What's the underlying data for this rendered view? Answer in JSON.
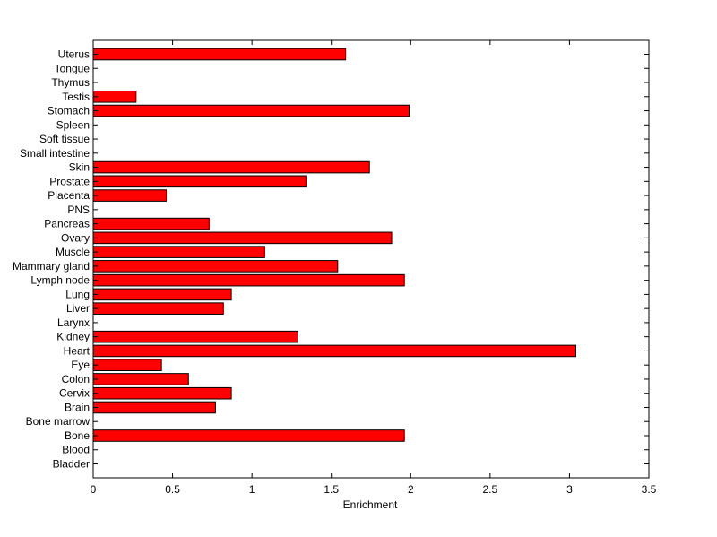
{
  "chart_data": {
    "type": "bar",
    "orientation": "horizontal",
    "title": "",
    "xlabel": "Enrichment",
    "ylabel": "",
    "xlim": [
      0,
      3.5
    ],
    "xticks": [
      "0",
      "0.5",
      "1",
      "1.5",
      "2",
      "2.5",
      "3",
      "3.5"
    ],
    "grid": false,
    "categories": [
      "Bladder",
      "Blood",
      "Bone",
      "Bone marrow",
      "Brain",
      "Cervix",
      "Colon",
      "Eye",
      "Heart",
      "Kidney",
      "Larynx",
      "Liver",
      "Lung",
      "Lymph node",
      "Mammary gland",
      "Muscle",
      "Ovary",
      "Pancreas",
      "PNS",
      "Placenta",
      "Prostate",
      "Skin",
      "Small intestine",
      "Soft tissue",
      "Spleen",
      "Stomach",
      "Testis",
      "Thymus",
      "Tongue",
      "Uterus"
    ],
    "values": [
      0,
      0,
      1.96,
      0,
      0.77,
      0.87,
      0.6,
      0.43,
      3.04,
      1.29,
      0,
      0.82,
      0.87,
      1.96,
      1.54,
      1.08,
      1.88,
      0.73,
      0,
      0.46,
      1.34,
      1.74,
      0,
      0,
      0,
      1.99,
      0.27,
      0,
      0,
      1.59
    ],
    "bar_color": "#ff0000",
    "edge_color": "#000000"
  }
}
